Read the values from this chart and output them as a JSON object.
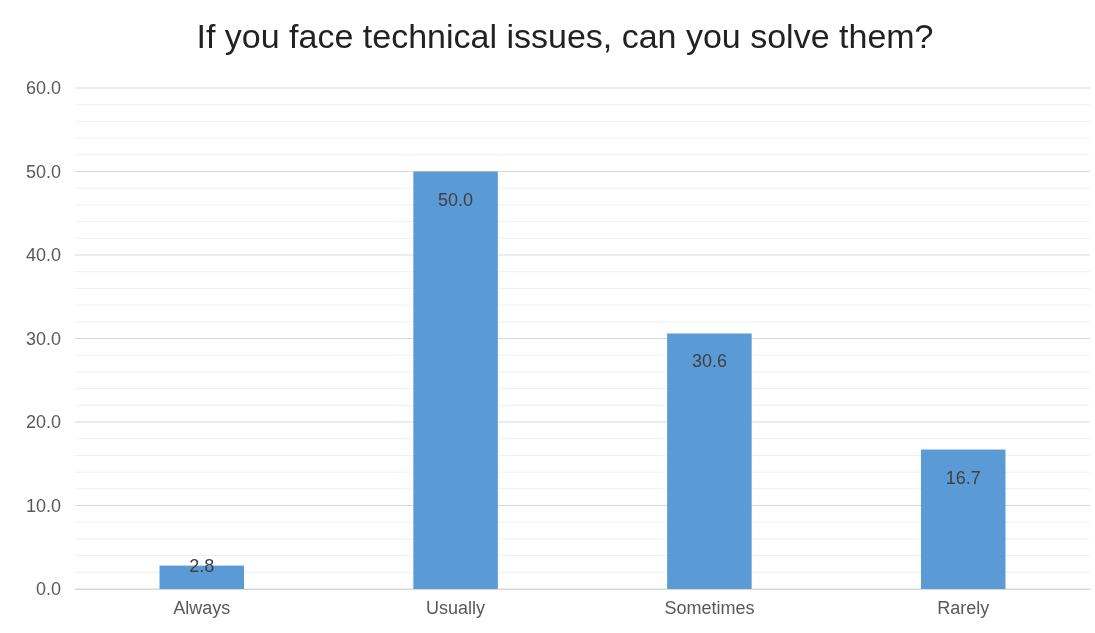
{
  "chart_data": {
    "type": "bar",
    "title": "If you face technical issues, can you solve them?",
    "categories": [
      "Always",
      "Usually",
      "Sometimes",
      "Rarely"
    ],
    "values": [
      2.8,
      50.0,
      30.6,
      16.7
    ],
    "value_labels": [
      "2.8",
      "50.0",
      "30.6",
      "16.7"
    ],
    "color": "#5b9bd5",
    "ylim": [
      0,
      60
    ],
    "yticks": [
      {
        "value": 0,
        "label": "0.0"
      },
      {
        "value": 2,
        "label": null
      },
      {
        "value": 4,
        "label": null
      },
      {
        "value": 6,
        "label": null
      },
      {
        "value": 8,
        "label": null
      },
      {
        "value": 10,
        "label": "10.0"
      },
      {
        "value": 12,
        "label": null
      },
      {
        "value": 14,
        "label": null
      },
      {
        "value": 16,
        "label": null
      },
      {
        "value": 18,
        "label": null
      },
      {
        "value": 20,
        "label": "20.0"
      },
      {
        "value": 22,
        "label": null
      },
      {
        "value": 24,
        "label": null
      },
      {
        "value": 26,
        "label": null
      },
      {
        "value": 28,
        "label": null
      },
      {
        "value": 30,
        "label": "30.0"
      },
      {
        "value": 32,
        "label": null
      },
      {
        "value": 34,
        "label": null
      },
      {
        "value": 36,
        "label": null
      },
      {
        "value": 38,
        "label": null
      },
      {
        "value": 40,
        "label": "40.0"
      },
      {
        "value": 42,
        "label": null
      },
      {
        "value": 44,
        "label": null
      },
      {
        "value": 46,
        "label": null
      },
      {
        "value": 48,
        "label": null
      },
      {
        "value": 50,
        "label": "50.0"
      },
      {
        "value": 52,
        "label": null
      },
      {
        "value": 54,
        "label": null
      },
      {
        "value": 56,
        "label": null
      },
      {
        "value": 58,
        "label": null
      },
      {
        "value": 60,
        "label": "60.0"
      }
    ],
    "grid": true
  }
}
